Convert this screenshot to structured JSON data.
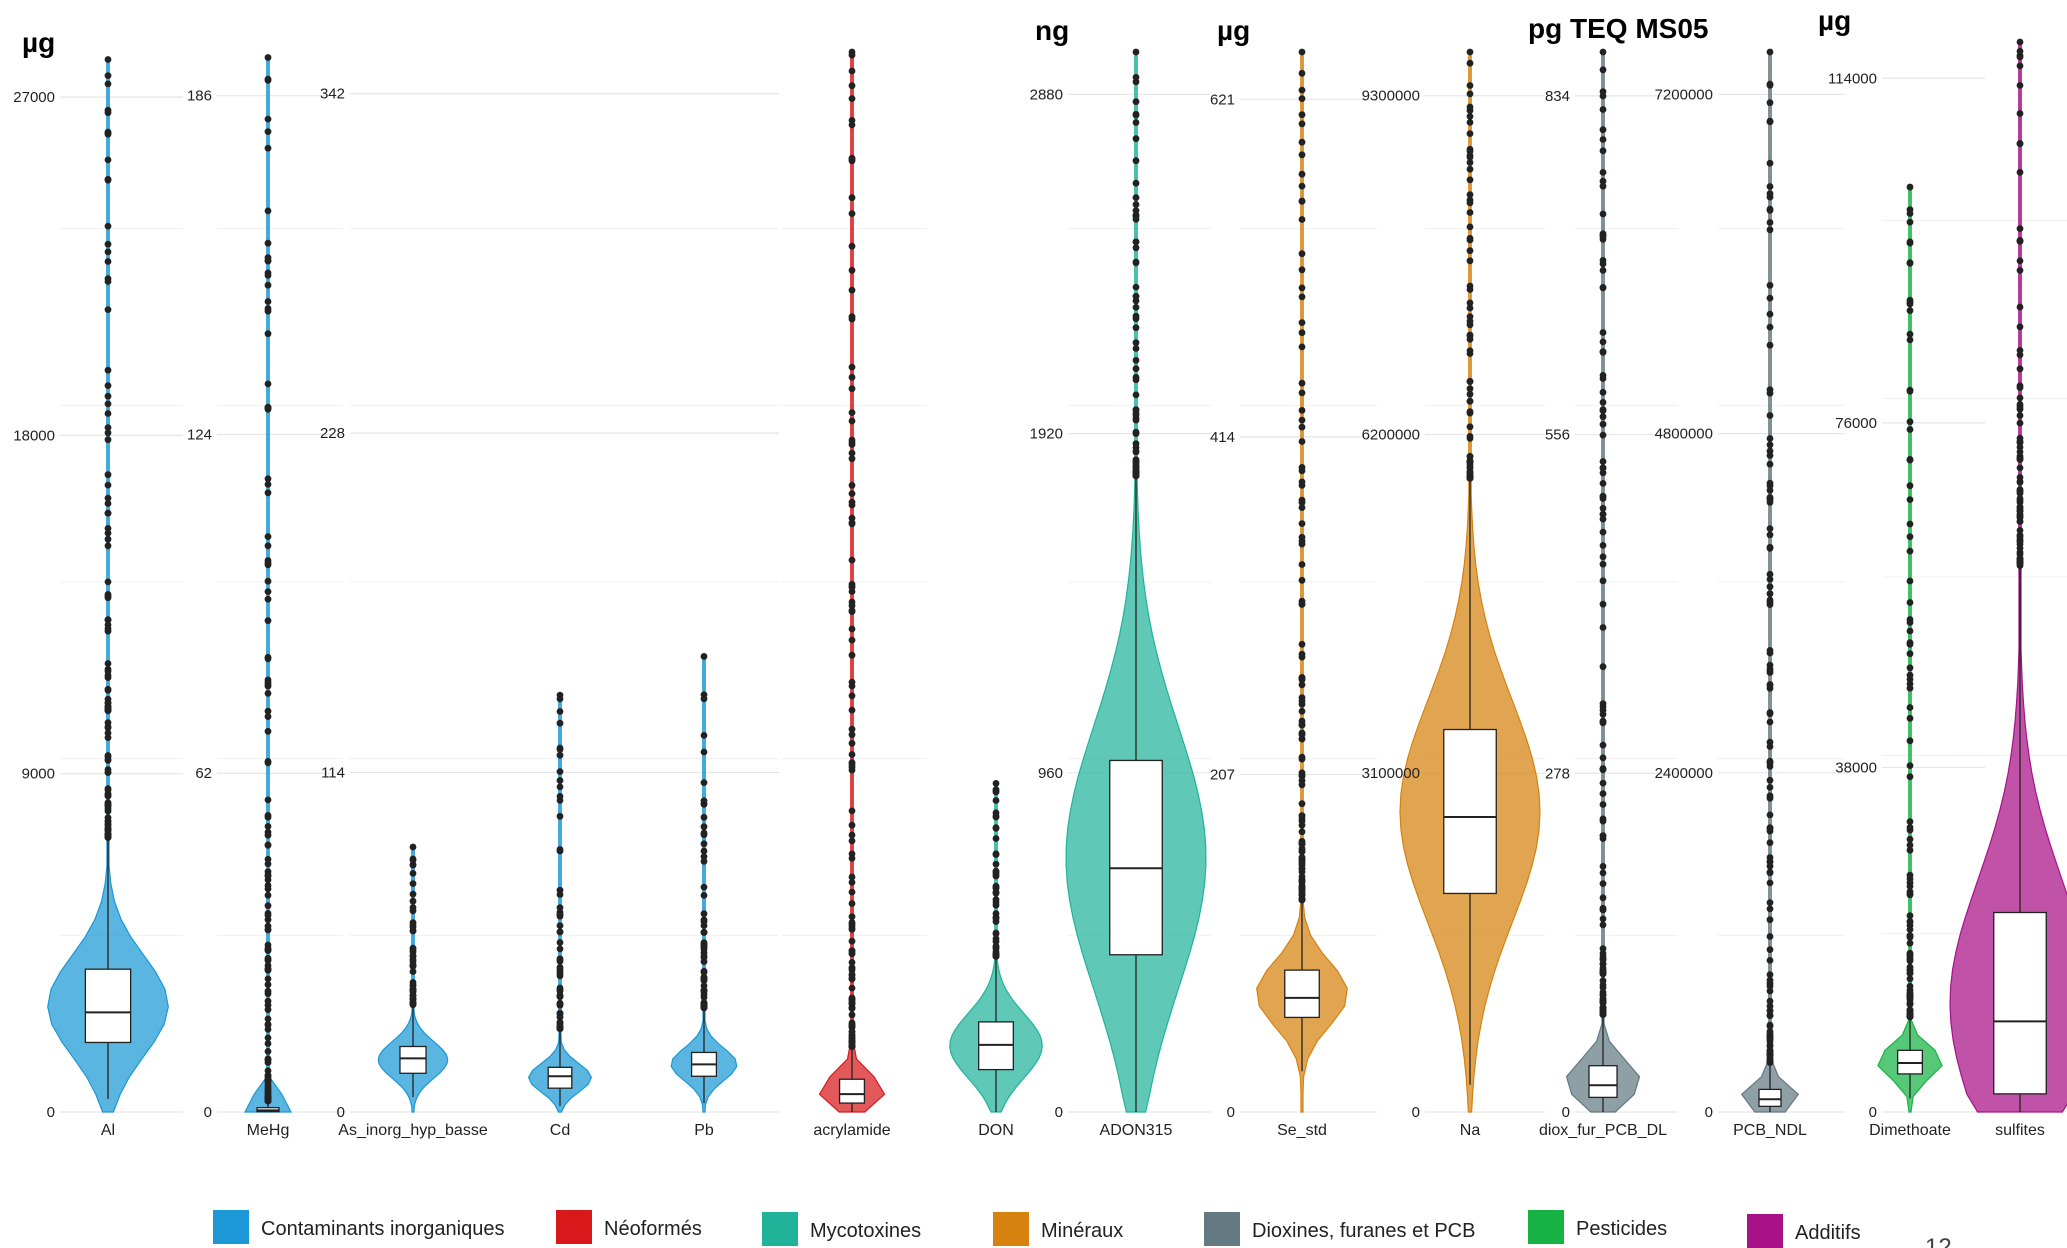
{
  "page_number": "12",
  "chart_data": {
    "type": "violin",
    "description_units": [
      {
        "label": "µg"
      },
      {
        "label": "ng"
      },
      {
        "label": "µg"
      },
      {
        "label": "pg TEQ MS05"
      },
      {
        "label": "µg"
      }
    ],
    "legend": [
      {
        "name": "Contaminants inorganiques",
        "color": "#1b98d5"
      },
      {
        "name": "Néoformés",
        "color": "#d7191c"
      },
      {
        "name": "Mycotoxines",
        "color": "#21b39a"
      },
      {
        "name": "Minéraux",
        "color": "#d6820f"
      },
      {
        "name": "Dioxines, furanes et PCB",
        "color": "#637a82"
      },
      {
        "name": "Pesticides",
        "color": "#16b344"
      },
      {
        "name": "Additifs",
        "color": "#a81187"
      }
    ],
    "panels": [
      {
        "ticks": [
          0,
          9000,
          18000,
          27000
        ],
        "ymax": 28200,
        "categories": [
          {
            "name": "Al",
            "group": "Contaminants inorganiques",
            "q1": 1850,
            "median": 2650,
            "q3": 3800,
            "lower": 350,
            "upper": 7300,
            "max": 28000
          }
        ]
      },
      {
        "ticks": [
          0,
          62,
          124,
          186
        ],
        "ymax": 194,
        "categories": [
          {
            "name": "MeHg",
            "group": "Contaminants inorganiques",
            "q1": 0.1,
            "median": 0.3,
            "q3": 0.8,
            "lower": 0,
            "upper": 2,
            "max": 193
          }
        ]
      },
      {
        "ticks": [
          0,
          114,
          228,
          342
        ],
        "ymax": 356,
        "categories": [
          {
            "name": "As_inorg_hyp_basse",
            "group": "Contaminants inorganiques",
            "q1": 13,
            "median": 18,
            "q3": 22,
            "lower": 5,
            "upper": 36,
            "max": 89
          },
          {
            "name": "Cd",
            "group": "Contaminants inorganiques",
            "q1": 8,
            "median": 12,
            "q3": 15,
            "lower": 2,
            "upper": 28,
            "max": 140
          },
          {
            "name": "Pb",
            "group": "Contaminants inorganiques",
            "q1": 12,
            "median": 16,
            "q3": 20,
            "lower": 3,
            "upper": 35,
            "max": 153
          }
        ]
      },
      {
        "ticks": [],
        "ymax": 356,
        "categories": [
          {
            "name": "acrylamide",
            "group": "Néoformés",
            "q1": 3,
            "median": 6,
            "q3": 11,
            "lower": 0,
            "upper": 22,
            "max": 356
          }
        ]
      },
      {
        "ticks": [
          0,
          960,
          1920,
          2880
        ],
        "ymax": 3000,
        "categories": [
          {
            "name": "DON",
            "group": "Mycotoxines",
            "q1": 120,
            "median": 190,
            "q3": 255,
            "lower": 0,
            "upper": 440,
            "max": 930
          },
          {
            "name": "ADON315",
            "group": "Mycotoxines",
            "q1": 445,
            "median": 690,
            "q3": 995,
            "lower": 0,
            "upper": 1800,
            "max": 3000
          }
        ]
      },
      {
        "ticks": [
          0,
          207,
          414,
          621
        ],
        "ymax": 650,
        "categories": [
          {
            "name": "Se_std",
            "group": "Minéraux",
            "q1": 58,
            "median": 70,
            "q3": 87,
            "lower": 25,
            "upper": 130,
            "max": 650
          }
        ]
      },
      {
        "ticks": [
          0,
          3100000,
          6200000,
          9300000
        ],
        "ymax": 9700000,
        "categories": [
          {
            "name": "Na",
            "group": "Minéraux",
            "q1": 2000000,
            "median": 2700000,
            "q3": 3500000,
            "lower": 250000,
            "upper": 5800000,
            "max": 9700000
          }
        ]
      },
      {
        "ticks": [
          0,
          278,
          556,
          834
        ],
        "ymax": 870,
        "categories": [
          {
            "name": "diox_fur_PCB_DL",
            "group": "Dioxines, furanes et PCB",
            "q1": 12,
            "median": 22,
            "q3": 38,
            "lower": 0,
            "upper": 80,
            "max": 870
          }
        ]
      },
      {
        "ticks": [
          0,
          2400000,
          4800000,
          7200000
        ],
        "ymax": 7500000,
        "categories": [
          {
            "name": "PCB_NDL",
            "group": "Dioxines, furanes et PCB",
            "q1": 40000,
            "median": 90000,
            "q3": 160000,
            "lower": 0,
            "upper": 350000,
            "max": 7500000
          }
        ]
      },
      {
        "ticks": [
          0,
          38000,
          76000,
          114000
        ],
        "ymax": 118000,
        "categories": [
          {
            "name": "Dimethoate",
            "group": "Pesticides",
            "q1": 4200,
            "median": 5400,
            "q3": 6800,
            "lower": 1500,
            "upper": 10500,
            "max": 102000
          }
        ]
      },
      {
        "ticks": [],
        "ymax": 118000,
        "categories": [
          {
            "name": "sulfites",
            "group": "Additifs",
            "q1": 2000,
            "median": 10000,
            "q3": 22000,
            "lower": 0,
            "upper": 60000,
            "max": 118000
          }
        ]
      }
    ]
  }
}
